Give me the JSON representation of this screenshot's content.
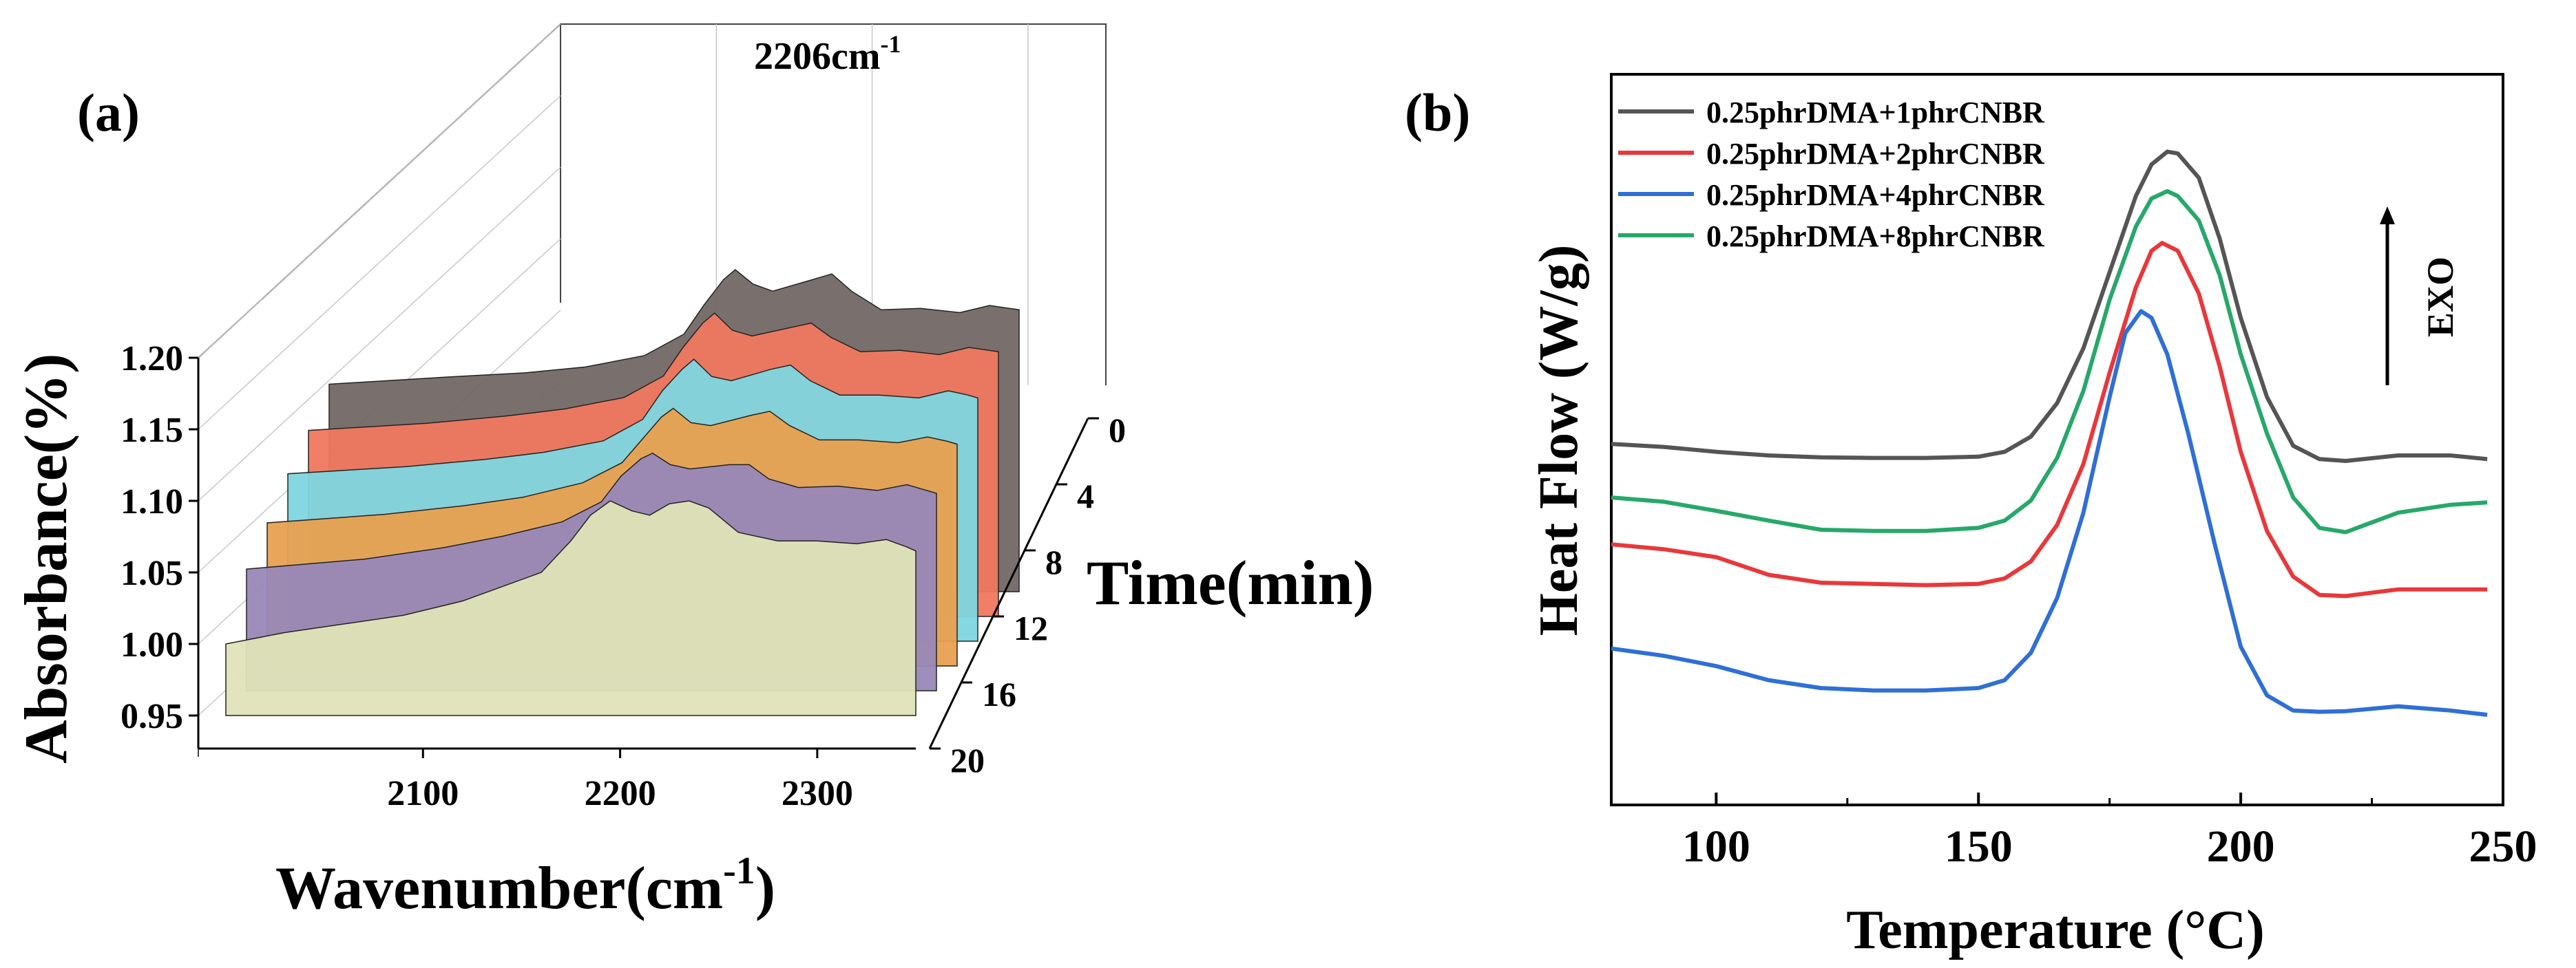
{
  "chart_data": [
    {
      "panel_label": "(a)",
      "type": "area",
      "subtype": "3d-waterfall",
      "xlabel": "Wavenumber(cm",
      "xlabel_sup": "-1",
      "xlabel_close": ")",
      "ylabel": "Absorbance(%)",
      "zlabel": "Time(min)",
      "annotation": "2206cm",
      "annotation_sup": "-1",
      "x_ticks": [
        "2100",
        "2200",
        "2300"
      ],
      "x_tick_values": [
        2100,
        2200,
        2300
      ],
      "y_ticks": [
        "0.95",
        "1.00",
        "1.05",
        "1.10",
        "1.15",
        "1.20"
      ],
      "y_tick_values": [
        0.95,
        1.0,
        1.05,
        1.1,
        1.15,
        1.2
      ],
      "z_ticks": [
        "0",
        "4",
        "8",
        "12",
        "16",
        "20"
      ],
      "xlim": [
        2000,
        2350
      ],
      "ylim": [
        0.95,
        1.2
      ],
      "grid": true,
      "series": [
        {
          "time": 0,
          "color": "#726866",
          "x": [
            2000,
            2060,
            2100,
            2130,
            2160,
            2180,
            2190,
            2200,
            2206,
            2215,
            2225,
            2245,
            2255,
            2265,
            2280,
            2300,
            2320,
            2335,
            2345,
            2350
          ],
          "y": [
            1.095,
            1.1,
            1.103,
            1.107,
            1.115,
            1.13,
            1.15,
            1.168,
            1.175,
            1.165,
            1.16,
            1.168,
            1.172,
            1.16,
            1.147,
            1.148,
            1.145,
            1.15,
            1.148,
            1.147
          ]
        },
        {
          "time": 4,
          "color": "#f07860",
          "x": [
            2000,
            2060,
            2100,
            2130,
            2160,
            2180,
            2190,
            2200,
            2206,
            2215,
            2225,
            2245,
            2255,
            2265,
            2280,
            2300,
            2320,
            2335,
            2345,
            2350
          ],
          "y": [
            1.08,
            1.085,
            1.09,
            1.095,
            1.103,
            1.118,
            1.138,
            1.155,
            1.162,
            1.15,
            1.146,
            1.152,
            1.155,
            1.145,
            1.135,
            1.136,
            1.133,
            1.138,
            1.136,
            1.135
          ]
        },
        {
          "time": 8,
          "color": "#7ed6df",
          "x": [
            2000,
            2060,
            2100,
            2130,
            2160,
            2180,
            2190,
            2200,
            2206,
            2215,
            2225,
            2245,
            2255,
            2265,
            2280,
            2300,
            2320,
            2335,
            2345,
            2350
          ],
          "y": [
            1.067,
            1.072,
            1.077,
            1.082,
            1.09,
            1.105,
            1.125,
            1.14,
            1.147,
            1.135,
            1.132,
            1.14,
            1.143,
            1.132,
            1.122,
            1.122,
            1.12,
            1.125,
            1.122,
            1.12
          ]
        },
        {
          "time": 12,
          "color": "#e8a050",
          "x": [
            2000,
            2060,
            2100,
            2130,
            2160,
            2180,
            2190,
            2200,
            2206,
            2215,
            2225,
            2245,
            2255,
            2265,
            2280,
            2300,
            2320,
            2335,
            2345,
            2350
          ],
          "y": [
            1.05,
            1.056,
            1.062,
            1.068,
            1.078,
            1.092,
            1.108,
            1.124,
            1.13,
            1.12,
            1.118,
            1.125,
            1.128,
            1.118,
            1.108,
            1.108,
            1.106,
            1.11,
            1.107,
            1.105
          ]
        },
        {
          "time": 16,
          "color": "#9888b8",
          "x": [
            2000,
            2060,
            2100,
            2130,
            2160,
            2180,
            2190,
            2200,
            2206,
            2215,
            2225,
            2245,
            2255,
            2265,
            2280,
            2300,
            2320,
            2335,
            2345,
            2350
          ],
          "y": [
            1.035,
            1.042,
            1.05,
            1.058,
            1.068,
            1.082,
            1.1,
            1.112,
            1.116,
            1.108,
            1.105,
            1.108,
            1.108,
            1.098,
            1.092,
            1.093,
            1.09,
            1.094,
            1.09,
            1.088
          ]
        },
        {
          "time": 20,
          "color": "#dfe3b8",
          "x": [
            2000,
            2030,
            2060,
            2090,
            2120,
            2140,
            2160,
            2175,
            2185,
            2195,
            2206,
            2215,
            2225,
            2235,
            2245,
            2260,
            2280,
            2300,
            2320,
            2335,
            2345,
            2350
          ],
          "y": [
            1.0,
            1.008,
            1.014,
            1.02,
            1.03,
            1.04,
            1.05,
            1.072,
            1.09,
            1.1,
            1.093,
            1.09,
            1.098,
            1.1,
            1.095,
            1.078,
            1.072,
            1.072,
            1.07,
            1.073,
            1.068,
            1.065
          ]
        }
      ]
    },
    {
      "panel_label": "(b)",
      "type": "line",
      "xlabel": "Temperature (°C)",
      "ylabel": "Heat Flow (W/g)",
      "annotation": "EXO",
      "xlim": [
        80,
        250
      ],
      "x_ticks": [
        "100",
        "150",
        "200",
        "250"
      ],
      "x_tick_values": [
        100,
        150,
        200,
        250
      ],
      "legend_position": "top-left",
      "grid": false,
      "series": [
        {
          "name": "0.25phrDMA+1phrCNBR",
          "color": "#555555",
          "x": [
            80,
            90,
            100,
            110,
            120,
            130,
            140,
            150,
            155,
            160,
            165,
            170,
            175,
            180,
            183,
            186,
            188,
            192,
            196,
            200,
            205,
            210,
            215,
            220,
            230,
            240,
            247
          ],
          "y": [
            8.43,
            8.38,
            8.3,
            8.24,
            8.21,
            8.2,
            8.2,
            8.22,
            8.3,
            8.55,
            9.1,
            10.0,
            11.25,
            12.5,
            13.02,
            13.23,
            13.2,
            12.8,
            11.8,
            10.5,
            9.2,
            8.4,
            8.18,
            8.15,
            8.24,
            8.24,
            8.18
          ]
        },
        {
          "name": "0.25phrDMA+2phrCNBR",
          "color": "#e8383b",
          "x": [
            80,
            90,
            100,
            110,
            120,
            130,
            140,
            150,
            155,
            160,
            165,
            170,
            175,
            180,
            183,
            185,
            188,
            192,
            196,
            200,
            205,
            210,
            215,
            220,
            230,
            240,
            247
          ],
          "y": [
            6.78,
            6.7,
            6.57,
            6.28,
            6.15,
            6.13,
            6.11,
            6.13,
            6.22,
            6.5,
            7.1,
            8.1,
            9.6,
            11.0,
            11.6,
            11.73,
            11.6,
            10.9,
            9.7,
            8.3,
            7.0,
            6.25,
            5.95,
            5.93,
            6.04,
            6.04,
            6.04
          ]
        },
        {
          "name": "0.25phrDMA+4phrCNBR",
          "color": "#2f6fd6",
          "x": [
            80,
            90,
            100,
            110,
            120,
            130,
            140,
            150,
            155,
            160,
            165,
            170,
            175,
            178,
            181,
            183,
            186,
            190,
            195,
            200,
            205,
            210,
            215,
            220,
            230,
            240,
            247
          ],
          "y": [
            5.07,
            4.95,
            4.78,
            4.55,
            4.42,
            4.38,
            4.38,
            4.42,
            4.55,
            5.0,
            5.9,
            7.3,
            9.2,
            10.25,
            10.61,
            10.5,
            9.9,
            8.6,
            6.8,
            5.1,
            4.3,
            4.05,
            4.03,
            4.04,
            4.12,
            4.05,
            3.98
          ]
        },
        {
          "name": "0.25phrDMA+8phrCNBR",
          "color": "#27a86a",
          "x": [
            80,
            90,
            100,
            110,
            120,
            130,
            140,
            150,
            155,
            160,
            165,
            170,
            175,
            180,
            183,
            186,
            188,
            192,
            196,
            200,
            205,
            210,
            215,
            220,
            230,
            240,
            247
          ],
          "y": [
            7.55,
            7.48,
            7.33,
            7.17,
            7.02,
            7.0,
            7.0,
            7.05,
            7.17,
            7.5,
            8.2,
            9.3,
            10.8,
            12.0,
            12.46,
            12.58,
            12.5,
            12.1,
            11.2,
            9.9,
            8.6,
            7.55,
            7.05,
            6.98,
            7.3,
            7.43,
            7.47
          ]
        }
      ]
    }
  ]
}
